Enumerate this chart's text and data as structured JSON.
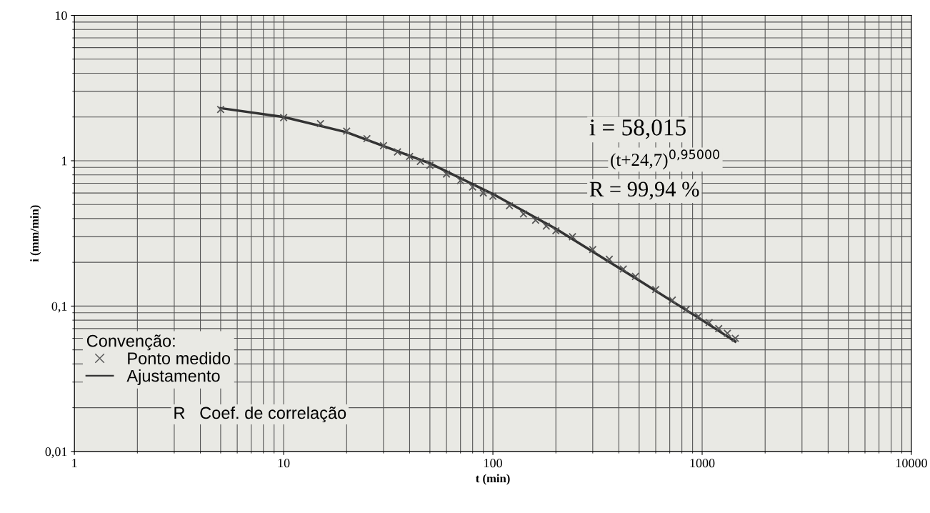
{
  "chart_data": {
    "type": "scatter",
    "xlabel": "t (min)",
    "ylabel": "i (mm/min)",
    "log": "xy",
    "xlim": [
      1,
      10000
    ],
    "ylim": [
      0.01,
      10
    ],
    "xticks": [
      1,
      10,
      100,
      1000,
      10000
    ],
    "yticks": [
      {
        "value": 0.01,
        "label": "0,01"
      },
      {
        "value": 0.1,
        "label": "0,1"
      },
      {
        "value": 1,
        "label": "1"
      },
      {
        "value": 10,
        "label": "10"
      }
    ],
    "grid": true,
    "legend": "bottom left",
    "legend_title": "Convenção:",
    "series": [
      {
        "name": "Ponto medido",
        "marker": "cross",
        "color": "#555555",
        "x": [
          5,
          10,
          15,
          20,
          25,
          30,
          35,
          40,
          45,
          50,
          60,
          70,
          80,
          90,
          100,
          120,
          140,
          160,
          180,
          200,
          240,
          300,
          360,
          420,
          480,
          600,
          720,
          840,
          960,
          1080,
          1200,
          1320,
          1440
        ],
        "values": [
          2.25,
          1.98,
          1.8,
          1.6,
          1.42,
          1.27,
          1.15,
          1.07,
          0.99,
          0.93,
          0.81,
          0.73,
          0.66,
          0.6,
          0.57,
          0.49,
          0.43,
          0.39,
          0.355,
          0.33,
          0.3,
          0.245,
          0.21,
          0.18,
          0.16,
          0.13,
          0.11,
          0.095,
          0.085,
          0.077,
          0.07,
          0.065,
          0.06
        ]
      },
      {
        "name": "Ajustamento",
        "type": "line",
        "marker": "none",
        "line_style": "solid",
        "color": "#333333",
        "x": [
          5,
          10,
          20,
          50,
          100,
          200,
          500,
          1000,
          1440
        ],
        "values": [
          2.3,
          2.0,
          1.57,
          0.96,
          0.59,
          0.34,
          0.15,
          0.08,
          0.057
        ]
      }
    ],
    "annotations": [
      "i = 58,015",
      "(t+24,7)$^{0,95000}$",
      "R = 99,94 %",
      "R   Coef. de correlação"
    ]
  }
}
